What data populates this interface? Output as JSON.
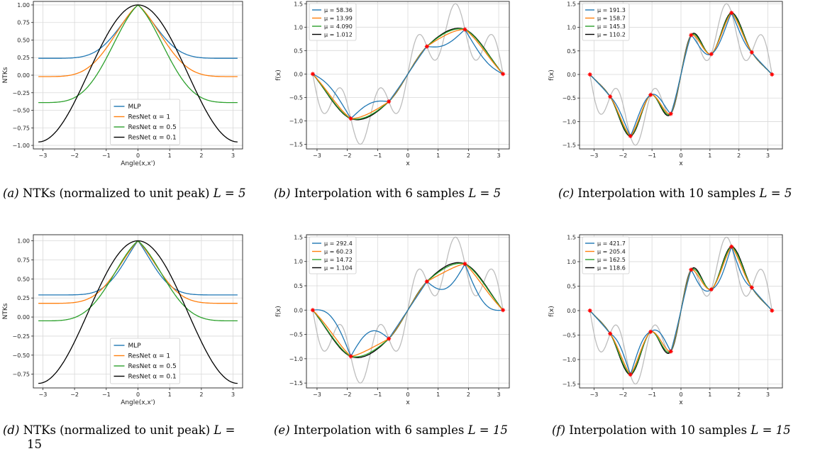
{
  "colors": {
    "mlp": "#1f77b4",
    "res1": "#ff7f0e",
    "res05": "#2ca02c",
    "res01": "#000000",
    "target": "#bdbdbd",
    "samples": "#ff0000"
  },
  "captions": [
    {
      "letter": "(a)",
      "text": "NTKs (normalized to unit peak)",
      "math": "L = 5"
    },
    {
      "letter": "(b)",
      "text": "Interpolation with 6 samples",
      "math": "L = 5"
    },
    {
      "letter": "(c)",
      "text": "Interpolation with 10 samples",
      "math": "L = 5"
    },
    {
      "letter": "(d)",
      "text": "NTKs (normalized to unit peak)",
      "math": "L =",
      "math2": "15"
    },
    {
      "letter": "(e)",
      "text": "Interpolation with 6 samples",
      "math": "L = 15"
    },
    {
      "letter": "(f)",
      "text": "Interpolation with 10 samples",
      "math": "L = 15"
    }
  ],
  "chart_data": [
    {
      "type": "line",
      "kind": "ntk",
      "xlabel": "Angle(x,x')",
      "ylabel": "NTKs",
      "xlim": [
        -3.3,
        3.3
      ],
      "ylim": [
        -1.05,
        1.05
      ],
      "xticks": [
        -3,
        -2,
        -1,
        0,
        1,
        2,
        3
      ],
      "yticks": [
        -1.0,
        -0.75,
        -0.5,
        -0.25,
        0.0,
        0.25,
        0.5,
        0.75,
        1.0
      ],
      "ytick_labels": [
        "−1.00",
        "−0.75",
        "−0.50",
        "−0.25",
        "0.00",
        "0.25",
        "0.50",
        "0.75",
        "1.00"
      ],
      "grid": true,
      "legend_position": "bottom-center",
      "series": [
        {
          "name": "MLP",
          "color_key": "mlp",
          "tail": 0.24,
          "p": 1.5
        },
        {
          "name": "ResNet α = 1",
          "color_key": "res1",
          "tail": -0.02,
          "p": 1.0
        },
        {
          "name": "ResNet α = 0.5",
          "color_key": "res05",
          "tail": -0.39,
          "p": 0.8
        },
        {
          "name": "ResNet α = 0.1",
          "color_key": "res01",
          "tail": -0.95,
          "p": 0.0
        }
      ]
    },
    {
      "type": "line",
      "kind": "interp",
      "xlabel": "x",
      "ylabel": "f(x)",
      "xlim": [
        -3.35,
        3.35
      ],
      "ylim": [
        -1.6,
        1.55
      ],
      "xticks": [
        -3,
        -2,
        -1,
        0,
        1,
        2,
        3
      ],
      "yticks": [
        -1.5,
        -1.0,
        -0.5,
        0.0,
        0.5,
        1.0,
        1.5
      ],
      "ytick_labels": [
        "−1.5",
        "−1.0",
        "−0.5",
        "0.0",
        "0.5",
        "1.0",
        "1.5"
      ],
      "grid": true,
      "legend_position": "top-left",
      "target": {
        "w1": 1.0,
        "a1": 1.0,
        "w2": 5.0,
        "a2": 0.5
      },
      "samples_x": [
        -3.1416,
        -1.885,
        -0.6283,
        0.6283,
        1.885,
        3.1416
      ],
      "series": [
        {
          "name": "μ = 58.36",
          "color_key": "mlp",
          "sharp": 2.2
        },
        {
          "name": "μ = 13.99",
          "color_key": "res1",
          "sharp": 0.9
        },
        {
          "name": "μ = 4.090",
          "color_key": "res05",
          "sharp": 0.35
        },
        {
          "name": "μ = 1.012",
          "color_key": "res01",
          "sharp": 0.0
        }
      ]
    },
    {
      "type": "line",
      "kind": "interp",
      "xlabel": "x",
      "ylabel": "f(x)",
      "xlim": [
        -3.5,
        3.5
      ],
      "ylim": [
        -1.58,
        1.55
      ],
      "xticks": [
        -3,
        -2,
        -1,
        0,
        1,
        2,
        3
      ],
      "yticks": [
        -1.5,
        -1.0,
        -0.5,
        0.0,
        0.5,
        1.0,
        1.5
      ],
      "ytick_labels": [
        "−1.5",
        "−1.0",
        "−0.5",
        "0.0",
        "0.5",
        "1.0",
        "1.5"
      ],
      "grid": true,
      "legend_position": "top-left",
      "target": {
        "w1": 1.0,
        "a1": 1.0,
        "w2": 5.0,
        "a2": 0.5
      },
      "samples_x": [
        -3.1416,
        -2.443,
        -1.745,
        -1.047,
        -0.349,
        0.349,
        1.047,
        1.745,
        2.443,
        3.1416
      ],
      "series": [
        {
          "name": "μ = 191.3",
          "color_key": "mlp",
          "sharp": 1.8
        },
        {
          "name": "μ = 158.7",
          "color_key": "res1",
          "sharp": 1.0
        },
        {
          "name": "μ = 145.3",
          "color_key": "res05",
          "sharp": 0.55
        },
        {
          "name": "μ = 110.2",
          "color_key": "res01",
          "sharp": 0.0
        }
      ]
    },
    {
      "type": "line",
      "kind": "ntk",
      "xlabel": "Angle(x,x')",
      "ylabel": "NTKs",
      "xlim": [
        -3.3,
        3.3
      ],
      "ylim": [
        -0.93,
        1.08
      ],
      "xticks": [
        -3,
        -2,
        -1,
        0,
        1,
        2,
        3
      ],
      "yticks": [
        -0.75,
        -0.5,
        -0.25,
        0.0,
        0.25,
        0.5,
        0.75,
        1.0
      ],
      "ytick_labels": [
        "−0.75",
        "−0.50",
        "−0.25",
        "0.00",
        "0.25",
        "0.50",
        "0.75",
        "1.00"
      ],
      "grid": true,
      "legend_position": "bottom-center",
      "series": [
        {
          "name": "MLP",
          "color_key": "mlp",
          "tail": 0.29,
          "p": 2.2
        },
        {
          "name": "ResNet α = 1",
          "color_key": "res1",
          "tail": 0.18,
          "p": 1.4
        },
        {
          "name": "ResNet α = 0.5",
          "color_key": "res05",
          "tail": -0.05,
          "p": 0.9
        },
        {
          "name": "ResNet α = 0.1",
          "color_key": "res01",
          "tail": -0.87,
          "p": 0.0
        }
      ]
    },
    {
      "type": "line",
      "kind": "interp",
      "xlabel": "x",
      "ylabel": "f(x)",
      "xlim": [
        -3.35,
        3.35
      ],
      "ylim": [
        -1.6,
        1.55
      ],
      "xticks": [
        -3,
        -2,
        -1,
        0,
        1,
        2,
        3
      ],
      "yticks": [
        -1.5,
        -1.0,
        -0.5,
        0.0,
        0.5,
        1.0,
        1.5
      ],
      "ytick_labels": [
        "−1.5",
        "−1.0",
        "−0.5",
        "0.0",
        "0.5",
        "1.0",
        "1.5"
      ],
      "grid": true,
      "legend_position": "top-left",
      "target": {
        "w1": 1.0,
        "a1": 1.0,
        "w2": 5.0,
        "a2": 0.5
      },
      "samples_x": [
        -3.1416,
        -1.885,
        -0.6283,
        0.6283,
        1.885,
        3.1416
      ],
      "series": [
        {
          "name": "μ = 292.4",
          "color_key": "mlp",
          "sharp": 3.0
        },
        {
          "name": "μ = 60.23",
          "color_key": "res1",
          "sharp": 1.2
        },
        {
          "name": "μ = 14.72",
          "color_key": "res05",
          "sharp": 0.45
        },
        {
          "name": "μ = 1.104",
          "color_key": "res01",
          "sharp": 0.0
        }
      ]
    },
    {
      "type": "line",
      "kind": "interp",
      "xlabel": "x",
      "ylabel": "f(x)",
      "xlim": [
        -3.5,
        3.5
      ],
      "ylim": [
        -1.58,
        1.55
      ],
      "xticks": [
        -3,
        -2,
        -1,
        0,
        1,
        2,
        3
      ],
      "yticks": [
        -1.5,
        -1.0,
        -0.5,
        0.0,
        0.5,
        1.0,
        1.5
      ],
      "ytick_labels": [
        "−1.5",
        "−1.0",
        "−0.5",
        "0.0",
        "0.5",
        "1.0",
        "1.5"
      ],
      "grid": true,
      "legend_position": "top-left",
      "target": {
        "w1": 1.0,
        "a1": 1.0,
        "w2": 5.0,
        "a2": 0.5
      },
      "samples_x": [
        -3.1416,
        -2.443,
        -1.745,
        -1.047,
        -0.349,
        0.349,
        1.047,
        1.745,
        2.443,
        3.1416
      ],
      "series": [
        {
          "name": "μ = 421.7",
          "color_key": "mlp",
          "sharp": 2.2
        },
        {
          "name": "μ = 205.4",
          "color_key": "res1",
          "sharp": 1.2
        },
        {
          "name": "μ = 162.5",
          "color_key": "res05",
          "sharp": 0.6
        },
        {
          "name": "μ = 118.6",
          "color_key": "res01",
          "sharp": 0.0
        }
      ]
    }
  ]
}
